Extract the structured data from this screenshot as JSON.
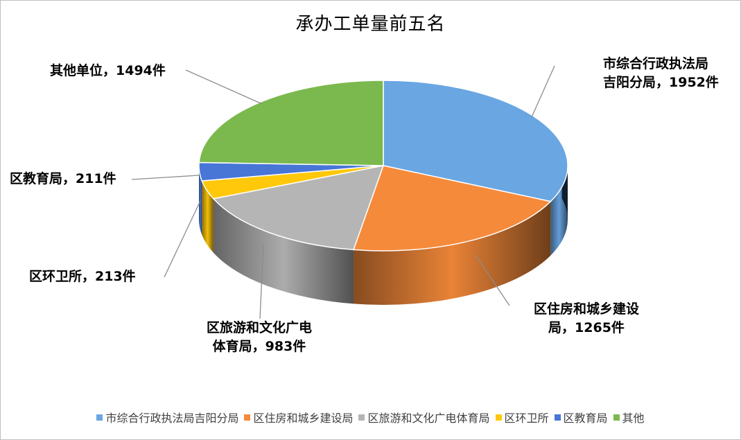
{
  "chart_data": {
    "type": "pie",
    "title": "承办工单量前五名",
    "unit": "件",
    "legend_position": "bottom",
    "categories": [
      "市综合行政执法局吉阳分局",
      "区住房和城乡建设局",
      "区旅游和文化广电体育局",
      "区环卫所",
      "区教育局",
      "其他"
    ],
    "values": [
      1952,
      1265,
      983,
      213,
      211,
      1494
    ],
    "colors": [
      "#69a6e2",
      "#f58a3a",
      "#b5b5b5",
      "#ffc80a",
      "#4876d6",
      "#7bb94e"
    ],
    "data_labels": [
      [
        "市综合行政执法局",
        "吉阳分局，1952件"
      ],
      [
        "区住房和城乡建设",
        "局，1265件"
      ],
      [
        "区旅游和文化广电",
        "体育局，983件"
      ],
      [
        "区环卫所，213件"
      ],
      [
        "区教育局，211件"
      ],
      [
        "其他单位，1494件"
      ]
    ]
  }
}
